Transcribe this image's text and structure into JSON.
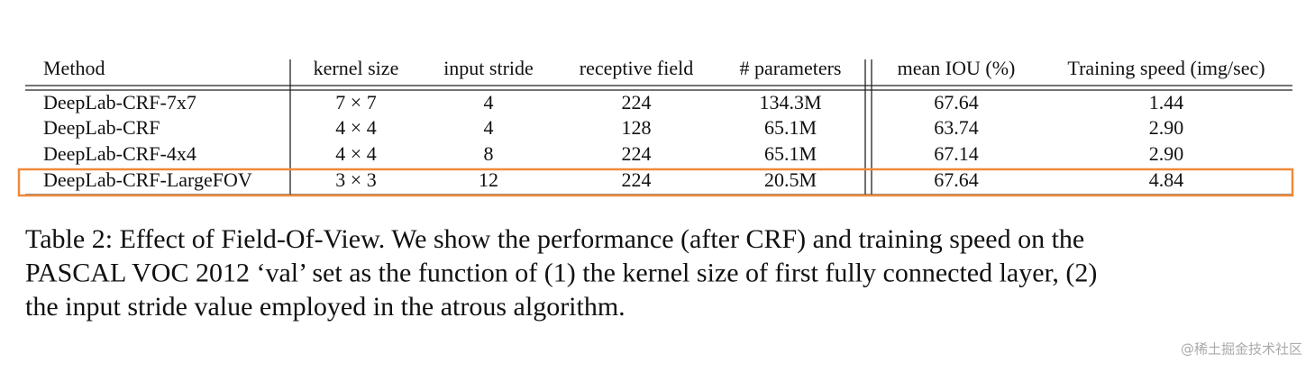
{
  "table": {
    "header": [
      "Method",
      "kernel size",
      "input stride",
      "receptive field",
      "# parameters",
      "mean IOU (%)",
      "Training speed (img/sec)"
    ],
    "rows": [
      [
        "DeepLab-CRF-7x7",
        "7 × 7",
        "4",
        "224",
        "134.3M",
        "67.64",
        "1.44"
      ],
      [
        "DeepLab-CRF",
        "4 × 4",
        "4",
        "128",
        "65.1M",
        "63.74",
        "2.90"
      ],
      [
        "DeepLab-CRF-4x4",
        "4 × 4",
        "8",
        "224",
        "65.1M",
        "67.14",
        "2.90"
      ],
      [
        "DeepLab-CRF-LargeFOV",
        "3 × 3",
        "12",
        "224",
        "20.5M",
        "67.64",
        "4.84"
      ]
    ]
  },
  "caption": [
    "Table 2: Effect of Field-Of-View. We show the performance (after CRF) and training speed on the",
    "PASCAL VOC 2012 ‘val’ set as the function of (1) the kernel size of first fully connected layer, (2)",
    "the input stride value employed in the atrous algorithm."
  ],
  "watermark": "@稀土掘金技术社区"
}
